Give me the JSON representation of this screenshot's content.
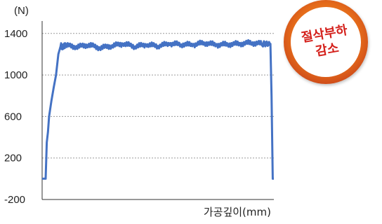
{
  "chart_data": {
    "type": "line",
    "title": "",
    "unit_label": "(N)",
    "xlabel": "가공깊이(mm)",
    "ylabel": "",
    "yticks": [
      1400,
      1000,
      600,
      200,
      -200
    ],
    "ylim": [
      -200,
      1520
    ],
    "xlim": [
      0,
      100
    ],
    "grid": true,
    "legend": "none",
    "series": [
      {
        "color": "#4472c4",
        "x": [
          0,
          1.5,
          2.0,
          2.5,
          3.0,
          4.0,
          5.0,
          6.0,
          7.0,
          8.0,
          9.0,
          10.0,
          15,
          20,
          25,
          30,
          35,
          40,
          45,
          50,
          55,
          60,
          65,
          70,
          75,
          80,
          85,
          90,
          95,
          98.5,
          99.0,
          99.5,
          100
        ],
        "values": [
          0,
          0,
          350,
          450,
          600,
          750,
          880,
          1000,
          1200,
          1280,
          1270,
          1285,
          1270,
          1290,
          1260,
          1280,
          1300,
          1275,
          1290,
          1280,
          1300,
          1295,
          1290,
          1310,
          1290,
          1295,
          1300,
          1310,
          1300,
          1300,
          800,
          0,
          0
        ]
      }
    ]
  },
  "badge": {
    "line1": "절삭부하",
    "line2": "감소"
  }
}
